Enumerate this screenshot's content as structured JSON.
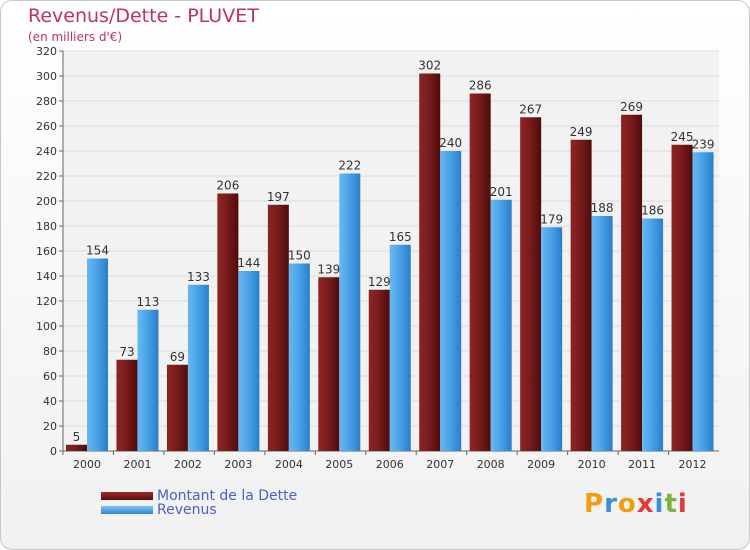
{
  "title": "Revenus/Dette - PLUVET",
  "subtitle": "(en milliers d'€)",
  "logo": {
    "letters": [
      "P",
      "r",
      "o",
      "x",
      "i",
      "t",
      "i"
    ],
    "colors": [
      "#f39c12",
      "#3a8fd8",
      "#f39c12",
      "#e53935",
      "#3a8fd8",
      "#7cb342",
      "#e53935"
    ]
  },
  "chart_data": {
    "type": "bar",
    "categories": [
      "2000",
      "2001",
      "2002",
      "2003",
      "2004",
      "2005",
      "2006",
      "2007",
      "2008",
      "2009",
      "2010",
      "2011",
      "2012"
    ],
    "series": [
      {
        "name": "Montant de la Dette",
        "values": [
          5,
          73,
          69,
          206,
          197,
          139,
          129,
          302,
          286,
          267,
          249,
          269,
          245
        ],
        "color": "#7a1c1c"
      },
      {
        "name": "Revenus",
        "values": [
          154,
          113,
          133,
          144,
          150,
          222,
          165,
          240,
          201,
          179,
          188,
          186,
          239
        ],
        "color": "#4aa3e8"
      }
    ],
    "ylim": [
      0,
      320
    ],
    "yticks": [
      0,
      20,
      40,
      60,
      80,
      100,
      120,
      140,
      160,
      180,
      200,
      220,
      240,
      260,
      280,
      300,
      320
    ],
    "grid": true,
    "legend": "bottom-left"
  }
}
